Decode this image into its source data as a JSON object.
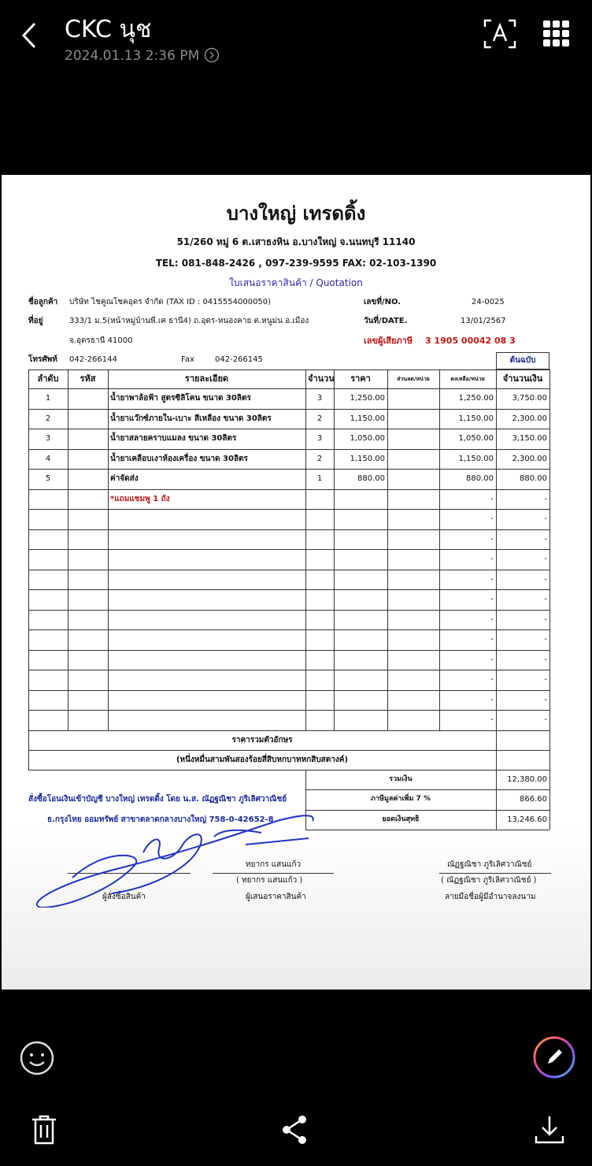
{
  "app_bar": {
    "title": "CKC นุช",
    "subtitle": "2024.01.13 2:36 PM"
  },
  "document": {
    "company_name": "บางใหญ่  เทรดดิ้ง",
    "address": "51/260 หมู่ 6 ต.เสาธงหิน อ.บางใหญ่ จ.นนทบุรี 11140",
    "contact": "TEL: 081-848-2426 , 097-239-9595 FAX: 02-103-1390",
    "doc_title": "ใบเสนอราคาสินค้า / Quotation",
    "customer": {
      "name_label": "ชื่อลูกค้า",
      "name": "บริษัท ไชคูณโชคอุดร จำกัด (TAX ID : 0415554000050)",
      "address_label": "ที่อยู่",
      "address_line1": "333/1 ม.5(หน้าหมู่บ้านพี.เค ธานี4) ถ.อุดร-หนองคาย ต.หนูม่น อ.เมือง",
      "address_line2": "จ.อุดรธานี 41000",
      "phone_label": "โทรศัพท์",
      "phone": "042-266144",
      "fax_label": "Fax",
      "fax": "042-266145"
    },
    "info": {
      "no_label": "เลขที่/NO.",
      "no": "24-0025",
      "date_label": "วันที่/DATE.",
      "date": "13/01/2567",
      "tax_label": "เลขผู้เสียภาษี",
      "tax_id": "3 1905 00042 08 3"
    },
    "badge": "ต้นฉบับ",
    "table": {
      "headers": [
        "ลำดับ",
        "รหัส",
        "รายละเอียด",
        "จำนวน",
        "ราคา",
        "ส่วนลด/หน่วย",
        "คงเหลือ/หน่วย",
        "จำนวนเงิน"
      ],
      "rows": [
        {
          "no": "1",
          "description": "น้ำยาพาล้อฟ้า สูตรซิลิโคน ขนาด 30ลิตร",
          "qty": "3",
          "price": "1,250.00",
          "net_price": "1,250.00",
          "amount": "3,750.00"
        },
        {
          "no": "2",
          "description": "น้ำยาแว๊กซ์ภายใน-เบาะ สีเหลือง ขนาด 30ลิตร",
          "qty": "2",
          "price": "1,150.00",
          "net_price": "1,150.00",
          "amount": "2,300.00"
        },
        {
          "no": "3",
          "description": "น้ำยาสลายคราบแมลง ขนาด 30ลิตร",
          "qty": "3",
          "price": "1,050.00",
          "net_price": "1,050.00",
          "amount": "3,150.00"
        },
        {
          "no": "4",
          "description": "น้ำยาเคลือบเงาห้องเครื่อง ขนาด 30ลิตร",
          "qty": "2",
          "price": "1,150.00",
          "net_price": "1,150.00",
          "amount": "2,300.00"
        },
        {
          "no": "5",
          "description": "ค่าจัดส่ง",
          "qty": "1",
          "price": "880.00",
          "net_price": "880.00",
          "amount": "880.00"
        },
        {
          "description": "*แถมแชมพู 1 ถัง",
          "net_price": "-",
          "amount": "-"
        },
        {
          "net_price": "-",
          "amount": "-"
        },
        {
          "net_price": "-",
          "amount": "-"
        },
        {
          "net_price": "-",
          "amount": "-"
        },
        {
          "net_price": "-",
          "amount": "-"
        },
        {
          "net_price": "-",
          "amount": "-"
        },
        {
          "net_price": "-",
          "amount": "-"
        },
        {
          "net_price": "-",
          "amount": "-"
        },
        {
          "net_price": "-",
          "amount": "-"
        },
        {
          "net_price": "-",
          "amount": "-"
        },
        {
          "net_price": "-",
          "amount": "-"
        },
        {
          "net_price": "-",
          "amount": "-"
        }
      ],
      "words_label": "ราคารวมตัวอักษร",
      "words": "(หนึ่งหมื่นสามพันสองร้อยสี่สิบหกบาทหกสิบสตางค์)",
      "totals": [
        {
          "label": "รวมเงิน",
          "value": "12,380.00"
        },
        {
          "label": "ภาษีมูลค่าเพิ่ม 7 %",
          "value": "866.60"
        },
        {
          "label": "ยอดเงินสุทธิ",
          "value": "13,246.60"
        }
      ]
    },
    "bank_line1": "สั่งซื้อโอนเงินเข้าบัญชี   บางใหญ่ เทรดดิ้ง โดย น.ส. ณัฏฐณิชา ภูริเลิศวาณิชย์",
    "bank_line2": "ธ.กรุงไทย ออมทรัพย์ สาขาตลาดกลางบางใหญ่ 758-0-42652-8",
    "signatures": {
      "buyer_role": "ผู้สั่งซื้อสินค้า",
      "seller_name": "ทยากร  แสนแก้ว",
      "seller_name_paren": "( ทยากร       แสนแก้ว )",
      "seller_role": "ผู้เสนอราคาสินค้า",
      "auth_name": "ณัฏฐณิชา  ภูริเลิศวาณิชย์",
      "auth_name_paren": "( ณัฏฐณิชา       ภูริเลิศวาณิชย์ )",
      "auth_role": "ลายมือชื่อผู้มีอำนาจลงนาม"
    }
  }
}
